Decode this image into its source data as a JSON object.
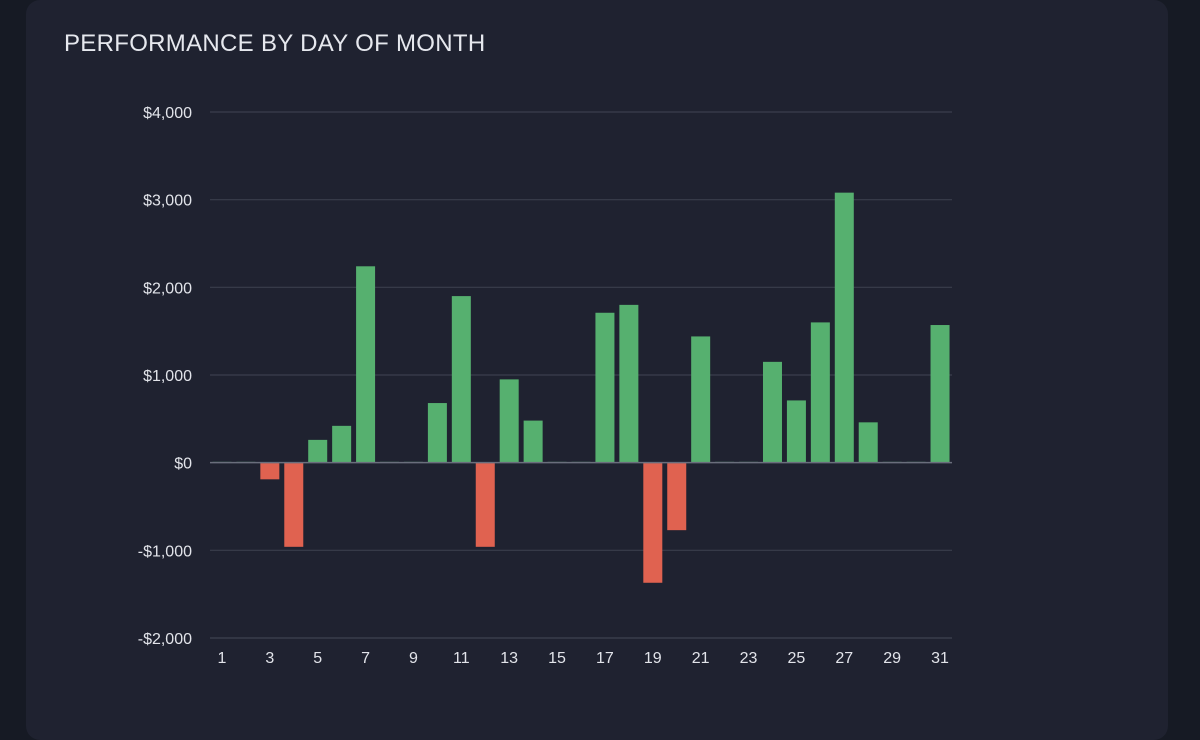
{
  "card": {
    "title": "PERFORMANCE BY DAY OF MONTH"
  },
  "colors": {
    "positive": "#56b06f",
    "negative": "#e06250",
    "grid": "#3a3e4c",
    "zero_line": "#6a6e7c",
    "background": "#1f2230"
  },
  "chart_data": {
    "type": "bar",
    "title": "PERFORMANCE BY DAY OF MONTH",
    "xlabel": "",
    "ylabel": "",
    "categories": [
      1,
      2,
      3,
      4,
      5,
      6,
      7,
      8,
      9,
      10,
      11,
      12,
      13,
      14,
      15,
      16,
      17,
      18,
      19,
      20,
      21,
      22,
      23,
      24,
      25,
      26,
      27,
      28,
      29,
      30,
      31
    ],
    "values": [
      0,
      0,
      -190,
      -960,
      260,
      420,
      2240,
      0,
      0,
      680,
      1900,
      -960,
      950,
      480,
      0,
      0,
      1710,
      1800,
      -1370,
      -770,
      1440,
      0,
      0,
      1150,
      710,
      1600,
      3080,
      460,
      0,
      0,
      1570
    ],
    "ylim": [
      -2000,
      4000
    ],
    "yticks": [
      -2000,
      -1000,
      0,
      1000,
      2000,
      3000,
      4000
    ],
    "ytick_labels": [
      "-$2,000",
      "-$1,000",
      "$0",
      "$1,000",
      "$2,000",
      "$3,000",
      "$4,000"
    ],
    "xtick_labels": [
      "1",
      "3",
      "5",
      "7",
      "9",
      "11",
      "13",
      "15",
      "17",
      "19",
      "21",
      "23",
      "25",
      "27",
      "29",
      "31"
    ],
    "grid": true,
    "legend": "none"
  }
}
